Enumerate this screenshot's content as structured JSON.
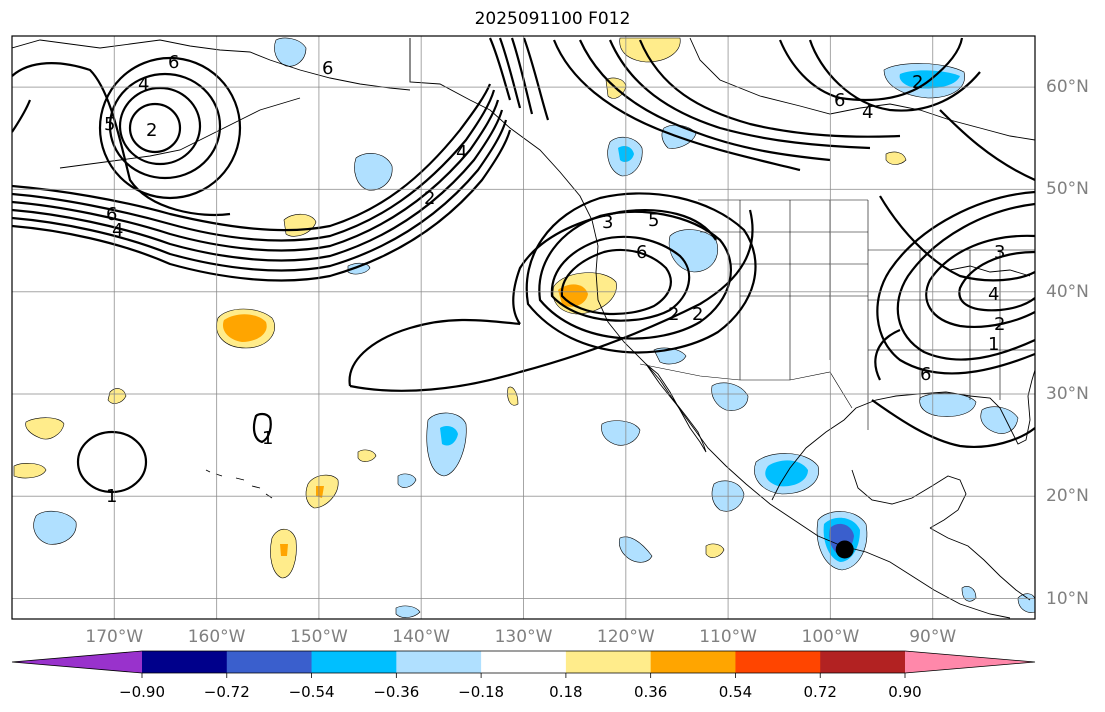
{
  "title": "2025091100 F012",
  "map": {
    "lon_range": [
      -180,
      -80
    ],
    "lat_range": [
      8,
      65
    ],
    "lon_ticks": [
      {
        "value": -170,
        "label": "170°W"
      },
      {
        "value": -160,
        "label": "160°W"
      },
      {
        "value": -150,
        "label": "150°W"
      },
      {
        "value": -140,
        "label": "140°W"
      },
      {
        "value": -130,
        "label": "130°W"
      },
      {
        "value": -120,
        "label": "120°W"
      },
      {
        "value": -110,
        "label": "110°W"
      },
      {
        "value": -100,
        "label": "100°W"
      },
      {
        "value": -90,
        "label": "90°W"
      }
    ],
    "lat_ticks": [
      {
        "value": 10,
        "label": "10°N"
      },
      {
        "value": 20,
        "label": "20°N"
      },
      {
        "value": 30,
        "label": "30°N"
      },
      {
        "value": 40,
        "label": "40°N"
      },
      {
        "value": 50,
        "label": "50°N"
      },
      {
        "value": 60,
        "label": "60°N"
      }
    ],
    "storm_marker": {
      "lon": -98.6,
      "lat": 14.8
    }
  },
  "colorbar": {
    "levels": [
      "−0.90",
      "−0.72",
      "−0.54",
      "−0.36",
      "−0.18",
      "0.18",
      "0.36",
      "0.54",
      "0.72",
      "0.90"
    ],
    "colors": [
      "#9932cc",
      "#00008b",
      "#3a5fcd",
      "#00bfff",
      "#b0e0ff",
      "#ffffff",
      "#ffec8b",
      "#ffa500",
      "#ff4500",
      "#b22222",
      "#ff88aa"
    ]
  },
  "contour_labels": [
    "6",
    "4",
    "5",
    "2",
    "6",
    "4",
    "2",
    "6",
    "3",
    "6",
    "5",
    "2",
    "6",
    "4",
    "2",
    "3",
    "4",
    "2",
    "1",
    "1",
    "1",
    "2",
    "6",
    "4"
  ]
}
